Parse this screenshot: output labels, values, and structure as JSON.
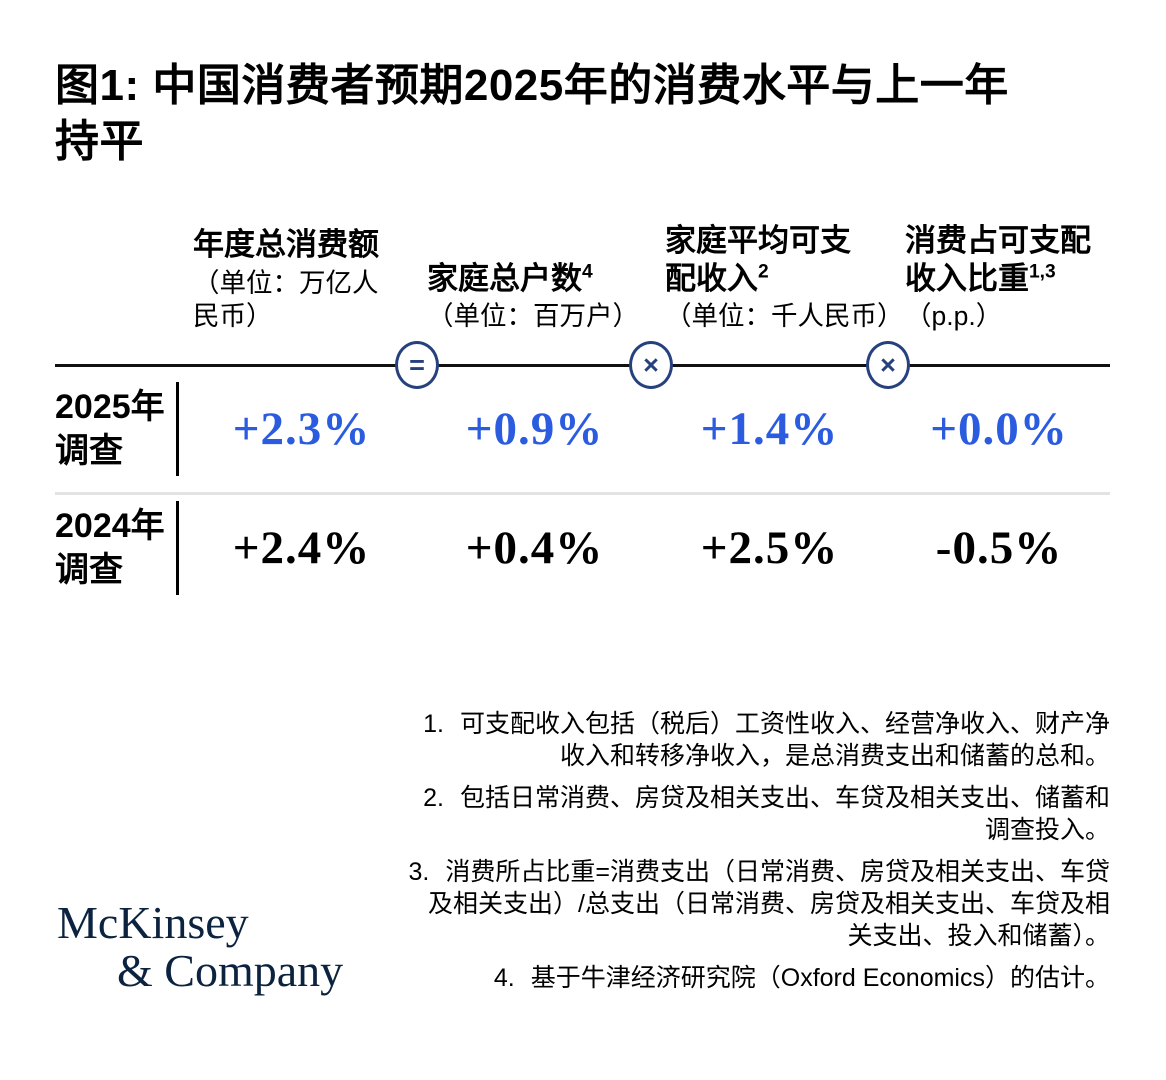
{
  "title_lines": [
    "图1: 中国消费者预期2025年的消费水平与上一年",
    "持平"
  ],
  "table": {
    "columns": [
      {
        "title": "年度总消费额",
        "sup": "",
        "subtitle": "（单位：万亿人民币）"
      },
      {
        "title": "家庭总户数",
        "sup": "4",
        "subtitle": "（单位：百万户）"
      },
      {
        "title": "家庭平均可支配收入",
        "sup": "2",
        "subtitle": "（单位：千人民币）"
      },
      {
        "title": "消费占可支配收入比重",
        "sup": "1,3",
        "subtitle": "（p.p.）"
      }
    ],
    "operators": [
      "=",
      "×",
      "×"
    ],
    "rows": [
      {
        "label": [
          "2025年",
          "调查"
        ],
        "values": [
          "+2.3%",
          "+0.9%",
          "+1.4%",
          "+0.0%"
        ]
      },
      {
        "label": [
          "2024年",
          "调查"
        ],
        "values": [
          "+2.4%",
          "+0.4%",
          "+2.5%",
          "-0.5%"
        ]
      }
    ]
  },
  "footnotes": [
    {
      "num": "1.",
      "text": "可支配收入包括（税后）工资性收入、经营净收入、财产净收入和转移净收入，是总消费支出和储蓄的总和。"
    },
    {
      "num": "2.",
      "text": "包括日常消费、房贷及相关支出、车贷及相关支出、储蓄和调查投入。"
    },
    {
      "num": "3.",
      "text": "消费所占比重=消费支出（日常消费、房贷及相关支出、车贷及相关支出）/总支出（日常消费、房贷及相关支出、车贷及相关支出、投入和储蓄）。"
    },
    {
      "num": "4.",
      "text": "基于牛津经济研究院（Oxford Economics）的估计。"
    }
  ],
  "logo": {
    "line1": "McKinsey",
    "line2": "& Company"
  },
  "colors": {
    "value_blue": "#2B5CE0",
    "operator_navy": "#26417E",
    "logo_navy": "#0C2340",
    "divider_black": "#111111",
    "divider_gray": "#E3E3E3"
  },
  "chart_data": {
    "type": "table",
    "title": "图1: 中国消费者预期2025年的消费水平与上一年持平",
    "categories": [
      "年度总消费额（单位：万亿人民币）",
      "家庭总户数（单位：百万户）",
      "家庭平均可支配收入（单位：千人民币）",
      "消费占可支配收入比重（p.p.）"
    ],
    "operators_between_columns": [
      "=",
      "×",
      "×"
    ],
    "series": [
      {
        "name": "2025年调查",
        "values": [
          "+2.3%",
          "+0.9%",
          "+1.4%",
          "+0.0%"
        ]
      },
      {
        "name": "2024年调查",
        "values": [
          "+2.4%",
          "+0.4%",
          "+2.5%",
          "-0.5%"
        ]
      }
    ],
    "footnotes": [
      "可支配收入包括（税后）工资性收入、经营净收入、财产净收入和转移净收入，是总消费支出和储蓄的总和。",
      "包括日常消费、房贷及相关支出、车贷及相关支出、储蓄和调查投入。",
      "消费所占比重=消费支出（日常消费、房贷及相关支出、车贷及相关支出）/总支出（日常消费、房贷及相关支出、车贷及相关支出、投入和储蓄）。",
      "基于牛津经济研究院（Oxford Economics）的估计。"
    ],
    "source_logo": "McKinsey & Company"
  }
}
